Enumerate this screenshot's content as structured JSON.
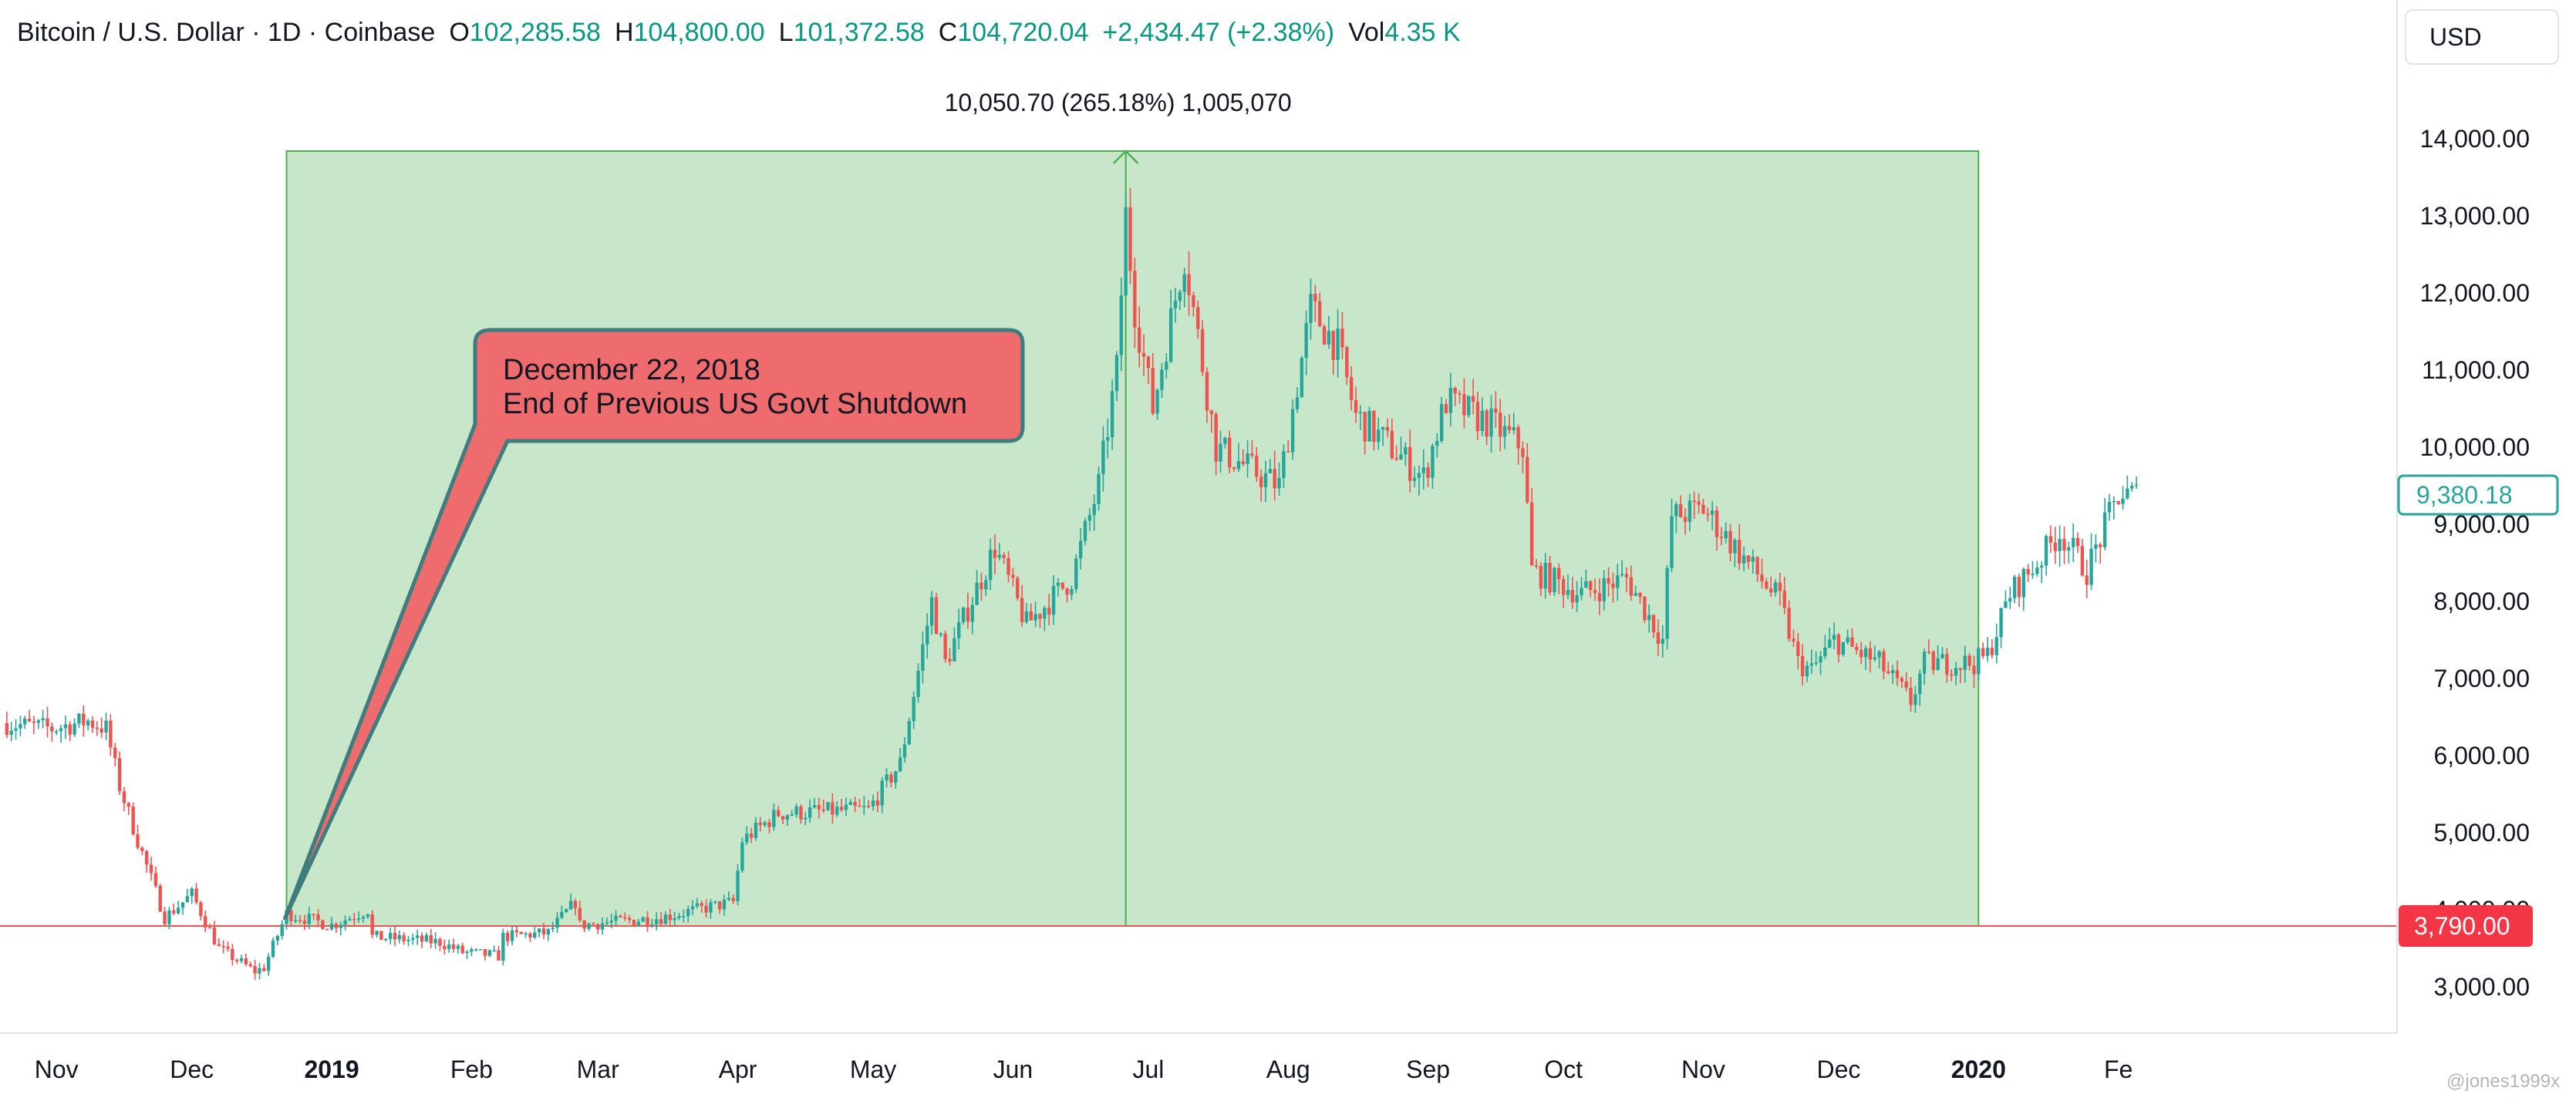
{
  "legend": {
    "symbol": "Bitcoin / U.S. Dollar · 1D · Coinbase",
    "open_label": "O",
    "open": "102,285.58",
    "high_label": "H",
    "high": "104,800.00",
    "low_label": "L",
    "low": "101,372.58",
    "close_label": "C",
    "close": "104,720.04",
    "change": "+2,434.47 (+2.38%)",
    "volume_label": "Vol",
    "volume": "4.35 K"
  },
  "currency_button": "USD",
  "measure_label": "10,050.70 (265.18%) 1,005,070",
  "callout": {
    "line1": "December 22, 2018",
    "line2": "End of Previous US Govt Shutdown"
  },
  "price_tags": {
    "last": "9,380.18",
    "base": "3,790.00"
  },
  "watermark": "@jones1999x",
  "colors": {
    "up": "#26a69a",
    "down": "#ef5350",
    "range_fill": "#c8e6c9",
    "range_border": "#4caf50",
    "callout_fill": "#ee6b6e",
    "callout_border": "#3d7d7d",
    "base_line": "#ef5350"
  },
  "chart_data": {
    "type": "candlestick",
    "title": "Bitcoin / U.S. Dollar · 1D · Coinbase",
    "x_axis_labels": [
      "Nov",
      "Dec",
      "2019",
      "Feb",
      "Mar",
      "Apr",
      "May",
      "Jun",
      "Jul",
      "Aug",
      "Sep",
      "Oct",
      "Nov",
      "Dec",
      "2020",
      "Fe"
    ],
    "y_axis_labels": [
      "3,000.00",
      "4,000.00",
      "5,000.00",
      "6,000.00",
      "7,000.00",
      "8,000.00",
      "9,000.00",
      "10,000.00",
      "11,000.00",
      "12,000.00",
      "13,000.00",
      "14,000.00"
    ],
    "y_range": [
      2500,
      14800
    ],
    "date_range": [
      "2018-10-20",
      "2020-02-05"
    ],
    "grid": false,
    "price_path": [
      [
        "2018-10-20",
        6420
      ],
      [
        "2018-10-31",
        6350
      ],
      [
        "2018-11-08",
        6450
      ],
      [
        "2018-11-12",
        6350
      ],
      [
        "2018-11-15",
        5600
      ],
      [
        "2018-11-19",
        4900
      ],
      [
        "2018-11-25",
        3900
      ],
      [
        "2018-12-01",
        4200
      ],
      [
        "2018-12-07",
        3500
      ],
      [
        "2018-12-15",
        3200
      ],
      [
        "2018-12-17",
        3250
      ],
      [
        "2018-12-22",
        3950
      ],
      [
        "2019-01-01",
        3800
      ],
      [
        "2019-01-09",
        4000
      ],
      [
        "2019-01-10",
        3650
      ],
      [
        "2019-01-25",
        3580
      ],
      [
        "2019-01-30",
        3450
      ],
      [
        "2019-02-07",
        3400
      ],
      [
        "2019-02-08",
        3650
      ],
      [
        "2019-02-18",
        3700
      ],
      [
        "2019-02-24",
        4100
      ],
      [
        "2019-02-25",
        3800
      ],
      [
        "2019-03-15",
        3900
      ],
      [
        "2019-03-31",
        4100
      ],
      [
        "2019-04-02",
        4900
      ],
      [
        "2019-04-10",
        5250
      ],
      [
        "2019-04-30",
        5300
      ],
      [
        "2019-05-07",
        5900
      ],
      [
        "2019-05-14",
        8000
      ],
      [
        "2019-05-17",
        7200
      ],
      [
        "2019-05-22",
        7900
      ],
      [
        "2019-05-28",
        8700
      ],
      [
        "2019-06-04",
        7700
      ],
      [
        "2019-06-14",
        8300
      ],
      [
        "2019-06-20",
        9500
      ],
      [
        "2019-06-24",
        11000
      ],
      [
        "2019-06-26",
        13000
      ],
      [
        "2019-06-28",
        11800
      ],
      [
        "2019-07-02",
        10500
      ],
      [
        "2019-07-09",
        12500
      ],
      [
        "2019-07-16",
        10000
      ],
      [
        "2019-07-24",
        9700
      ],
      [
        "2019-07-30",
        9500
      ],
      [
        "2019-08-06",
        11800
      ],
      [
        "2019-08-12",
        11300
      ],
      [
        "2019-08-16",
        10400
      ],
      [
        "2019-08-22",
        10100
      ],
      [
        "2019-08-31",
        9600
      ],
      [
        "2019-09-05",
        10600
      ],
      [
        "2019-09-15",
        10300
      ],
      [
        "2019-09-22",
        10000
      ],
      [
        "2019-09-24",
        8400
      ],
      [
        "2019-10-05",
        8100
      ],
      [
        "2019-10-15",
        8300
      ],
      [
        "2019-10-23",
        7500
      ],
      [
        "2019-10-25",
        9100
      ],
      [
        "2019-11-01",
        9200
      ],
      [
        "2019-11-08",
        8700
      ],
      [
        "2019-11-18",
        8000
      ],
      [
        "2019-11-22",
        7200
      ],
      [
        "2019-11-25",
        7100
      ],
      [
        "2019-11-30",
        7500
      ],
      [
        "2019-12-10",
        7200
      ],
      [
        "2019-12-17",
        6700
      ],
      [
        "2019-12-20",
        7200
      ],
      [
        "2019-12-31",
        7200
      ],
      [
        "2020-01-03",
        7300
      ],
      [
        "2020-01-08",
        8100
      ],
      [
        "2020-01-14",
        8500
      ],
      [
        "2020-01-19",
        8900
      ],
      [
        "2020-01-25",
        8400
      ],
      [
        "2020-02-01",
        9380
      ],
      [
        "2020-02-05",
        9380
      ]
    ],
    "measure": {
      "start_date": "2018-12-22",
      "end_date": "2020-01-01",
      "base_price": 3790,
      "top_price": 13840,
      "peak_date": "2019-06-26",
      "label": "10,050.70 (265.18%) 1,005,070"
    },
    "annotation": {
      "date": "2018-12-22",
      "price": 3950,
      "text": [
        "December 22, 2018",
        "End of Previous US Govt Shutdown"
      ]
    },
    "last_price": 9380.18,
    "base_price_tag": 3790
  }
}
